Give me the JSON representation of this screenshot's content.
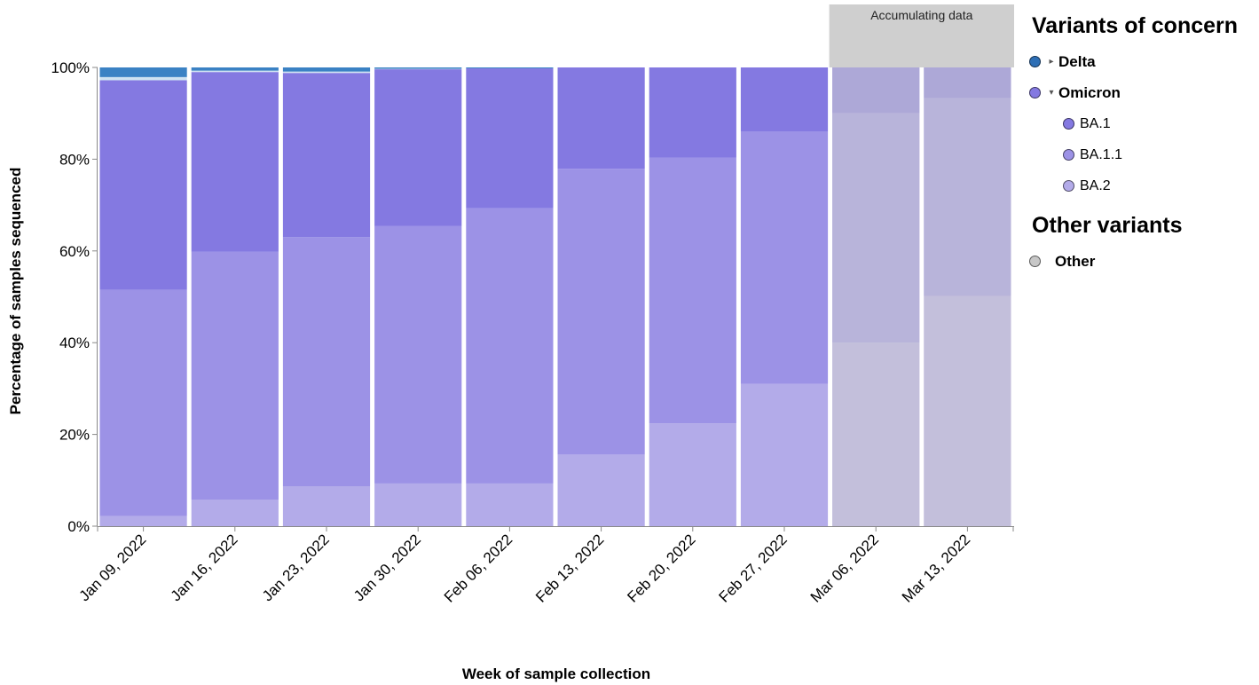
{
  "chart_data": {
    "type": "bar",
    "stacked": true,
    "normalized": true,
    "categories": [
      "Jan 09, 2022",
      "Jan 16, 2022",
      "Jan 23, 2022",
      "Jan 30, 2022",
      "Feb 06, 2022",
      "Feb 13, 2022",
      "Feb 20, 2022",
      "Feb 27, 2022",
      "Mar 06, 2022",
      "Mar 13, 2022"
    ],
    "series": [
      {
        "name": "BA.2",
        "color": "#b3abe9",
        "values": [
          2.2,
          5.8,
          8.7,
          9.3,
          9.3,
          15.6,
          22.4,
          31.0,
          40.0,
          50.2
        ]
      },
      {
        "name": "BA.1.1",
        "color": "#9c92e6",
        "values": [
          49.3,
          54.0,
          54.3,
          56.1,
          60.0,
          62.3,
          57.9,
          55.0,
          50.0,
          43.1
        ]
      },
      {
        "name": "BA.1",
        "color": "#8479e1",
        "values": [
          45.7,
          39.2,
          35.8,
          34.2,
          30.5,
          22.1,
          19.7,
          14.0,
          10.0,
          6.7
        ]
      },
      {
        "name": "Other",
        "color": "#cfe3f2",
        "values": [
          0.7,
          0.3,
          0.3,
          0.1,
          0.0,
          0.0,
          0.0,
          0.0,
          0.0,
          0.0
        ]
      },
      {
        "name": "Delta",
        "color": "#3b82c4",
        "values": [
          2.1,
          0.7,
          0.9,
          0.3,
          0.2,
          0.0,
          0.0,
          0.0,
          0.0,
          0.0
        ]
      }
    ],
    "ylim": [
      0,
      100
    ],
    "yticks": [
      0,
      20,
      40,
      60,
      80,
      100
    ],
    "ytick_labels": [
      "0%",
      "20%",
      "40%",
      "60%",
      "80%",
      "100%"
    ],
    "xlabel": "Week of sample collection",
    "ylabel": "Percentage of samples sequenced",
    "accumulating": {
      "label": "Accumulating data",
      "categories": [
        "Mar 06, 2022",
        "Mar 13, 2022"
      ],
      "overlay_color": "#cfcfcf"
    },
    "legend_position": "right"
  },
  "legend": {
    "concern_title": "Variants of concern",
    "delta_label": "Delta",
    "delta_color": "#2e6fb5",
    "delta_caret": "▸",
    "omicron_label": "Omicron",
    "omicron_color": "#8479e1",
    "omicron_caret": "▾",
    "ba1_label": "BA.1",
    "ba1_color": "#8479e1",
    "ba11_label": "BA.1.1",
    "ba11_color": "#9c92e6",
    "ba2_label": "BA.2",
    "ba2_color": "#b3abe9",
    "other_title": "Other variants",
    "other_label": "Other",
    "other_color": "#c7c7c7"
  }
}
